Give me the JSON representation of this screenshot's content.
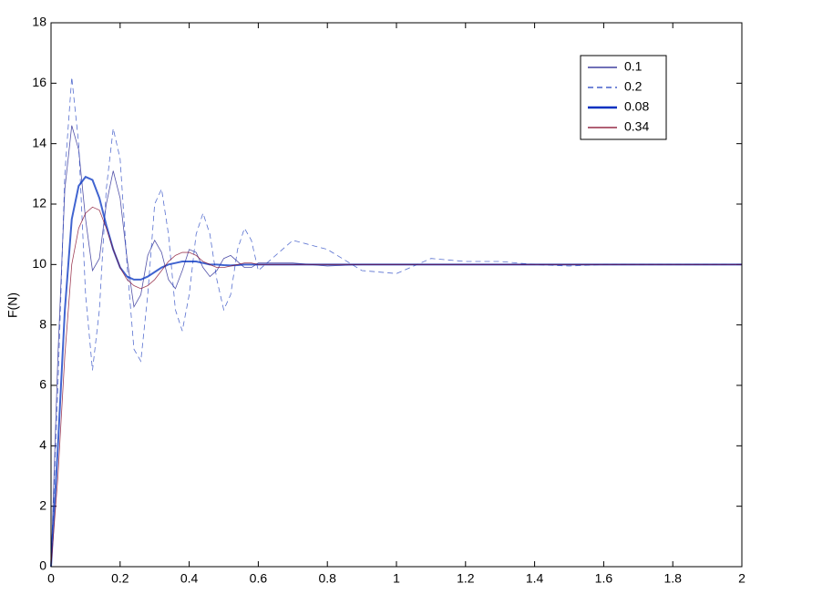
{
  "chart_data": {
    "type": "line",
    "ylabel": "F(N)",
    "x": [
      0,
      0.02,
      0.04,
      0.06,
      0.08,
      0.1,
      0.12,
      0.14,
      0.16,
      0.18,
      0.2,
      0.22,
      0.24,
      0.26,
      0.28,
      0.3,
      0.32,
      0.34,
      0.36,
      0.38,
      0.4,
      0.42,
      0.44,
      0.46,
      0.48,
      0.5,
      0.52,
      0.54,
      0.56,
      0.58,
      0.6,
      0.7,
      0.8,
      0.9,
      1.0,
      1.1,
      1.2,
      1.3,
      1.4,
      1.5,
      1.6,
      1.7,
      1.8,
      1.9,
      2.0
    ],
    "series": [
      {
        "name": "0.1",
        "color": "#1a1a8c",
        "style": "solid",
        "linewidth": 0.8,
        "values": [
          0,
          7,
          12.5,
          14.6,
          13.8,
          11.5,
          9.8,
          10.2,
          12,
          13.1,
          12.2,
          10.2,
          8.6,
          9,
          10.3,
          10.8,
          10.4,
          9.5,
          9.2,
          9.8,
          10.5,
          10.4,
          9.9,
          9.6,
          9.8,
          10.2,
          10.3,
          10.1,
          9.9,
          9.9,
          10.05,
          10.05,
          9.95,
          10,
          10,
          10,
          10,
          10,
          10,
          10,
          10,
          10,
          10,
          10,
          10
        ]
      },
      {
        "name": "0.2",
        "color": "#2040c0",
        "style": "dashed",
        "linewidth": 0.8,
        "values": [
          0,
          6,
          13,
          16.2,
          14,
          9,
          6.5,
          8.5,
          12.5,
          14.5,
          13.5,
          10,
          7.2,
          6.8,
          9,
          12,
          12.5,
          11,
          8.5,
          7.8,
          9,
          11,
          11.7,
          11,
          9.5,
          8.5,
          9,
          10.5,
          11.2,
          10.8,
          9.8,
          10.8,
          10.5,
          9.8,
          9.7,
          10.2,
          10.1,
          10.1,
          10,
          9.95,
          10,
          10,
          10,
          10,
          10
        ]
      },
      {
        "name": "0.08",
        "color": "#0030c0",
        "style": "solid",
        "linewidth": 2,
        "values": [
          0,
          4,
          8.5,
          11.5,
          12.6,
          12.9,
          12.8,
          12.2,
          11.3,
          10.5,
          9.9,
          9.6,
          9.5,
          9.5,
          9.6,
          9.75,
          9.9,
          10,
          10.05,
          10.1,
          10.1,
          10.1,
          10.05,
          10,
          10,
          9.98,
          9.97,
          9.98,
          10,
          10,
          10,
          10,
          10,
          10,
          10,
          10,
          10,
          10,
          10,
          10,
          10,
          10,
          10,
          10,
          10
        ]
      },
      {
        "name": "0.34",
        "color": "#800020",
        "style": "solid",
        "linewidth": 0.8,
        "values": [
          0,
          3,
          7,
          10,
          11.2,
          11.7,
          11.9,
          11.8,
          11.2,
          10.5,
          9.9,
          9.5,
          9.3,
          9.2,
          9.3,
          9.5,
          9.8,
          10.1,
          10.3,
          10.4,
          10.4,
          10.3,
          10.1,
          10,
          9.9,
          9.9,
          9.95,
          10,
          10.05,
          10.05,
          10,
          10,
          10,
          10,
          10,
          10,
          10,
          10,
          10,
          10,
          10,
          10,
          10,
          10,
          10
        ]
      }
    ],
    "xlim": [
      0,
      2
    ],
    "ylim": [
      0,
      18
    ],
    "xticks": [
      0,
      0.2,
      0.4,
      0.6,
      0.8,
      1,
      1.2,
      1.4,
      1.6,
      1.8,
      2
    ],
    "yticks": [
      0,
      2,
      4,
      6,
      8,
      10,
      12,
      14,
      16,
      18
    ],
    "grid": false,
    "legend_loc": "upper right"
  }
}
